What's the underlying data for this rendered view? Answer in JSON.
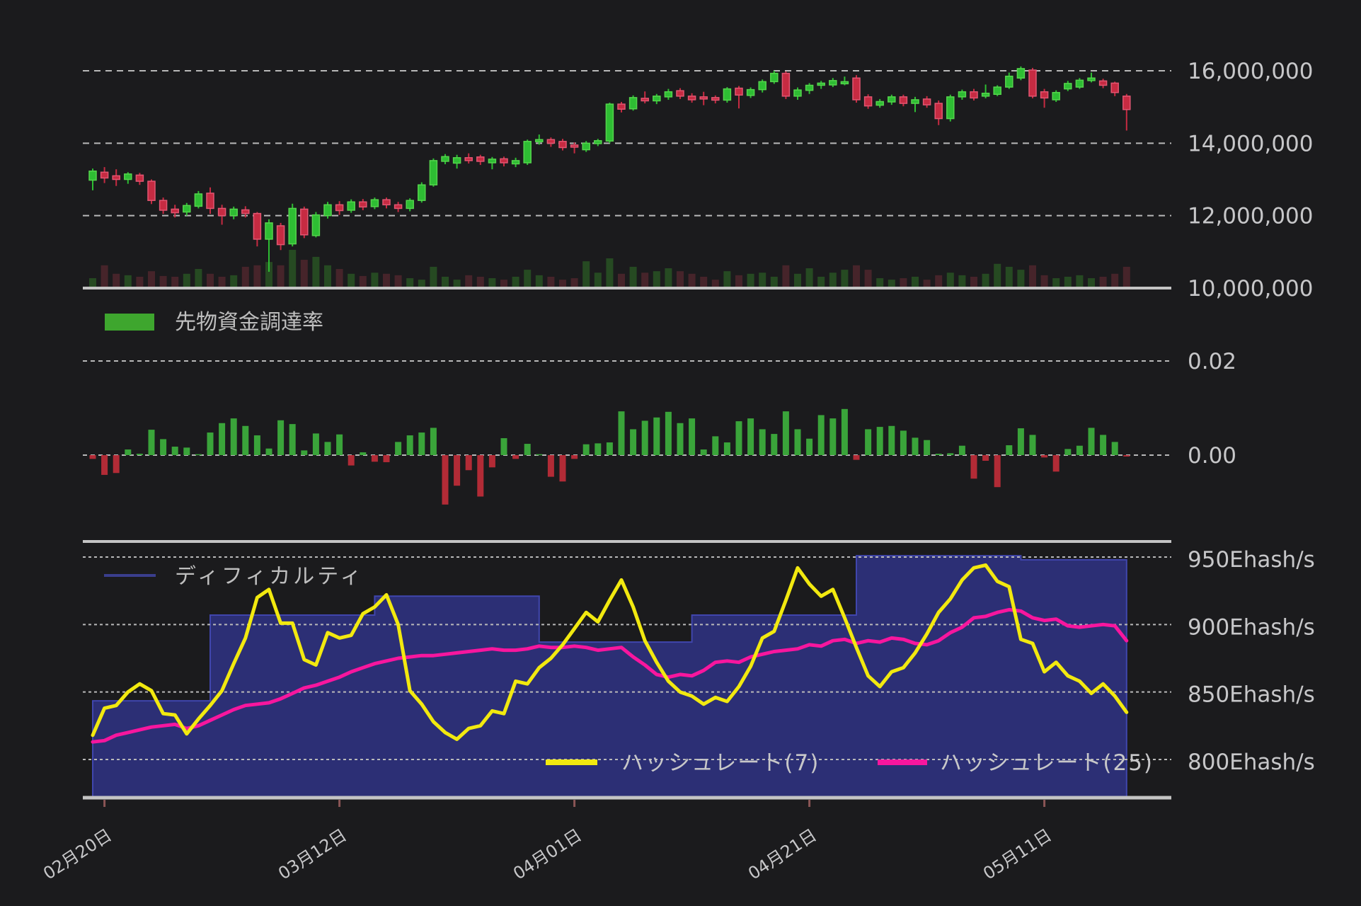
{
  "colors": {
    "background": "#1b1b1d",
    "gridline": "#b9b9b9",
    "panel_border": "#c4c4c4",
    "axis_text": "#c7c7c9",
    "candle_up_fill": "#2ebd33",
    "candle_up_stroke": "#55d44d",
    "candle_down_fill": "#c62b42",
    "candle_down_stroke": "#e25672",
    "volume_up": "#264a22",
    "volume_down": "#46242a",
    "funding_up": "#3aa43a",
    "funding_down": "#b22b36",
    "funding_legend_swatch": "#3ea62e",
    "difficulty_fill": "#2c2f75",
    "difficulty_edge": "#4046ad",
    "difficulty_legend": "#3a3e8d",
    "hashrate7_color": "#f2e90f",
    "hashrate25_color": "#f7169e",
    "tick_mark": "#8a5555"
  },
  "legends": {
    "funding": "先物資金調達率",
    "difficulty": "ディフィカルティ",
    "hashrate7": "ハッシュレート(7)",
    "hashrate25": "ハッシュレート(25)"
  },
  "x_axis": {
    "tick_labels": [
      "02月20日",
      "03月12日",
      "04月01日",
      "04月21日",
      "05月11日"
    ],
    "tick_days": [
      1,
      21,
      41,
      61,
      81
    ]
  },
  "price_axis": {
    "labels": [
      "16,000,000",
      "14,000,000",
      "12,000,000",
      "10,000,000"
    ],
    "values": [
      16000000,
      14000000,
      12000000,
      10000000
    ]
  },
  "funding_axis": {
    "labels": [
      "0.02",
      "0.00"
    ],
    "values": [
      0.02,
      0
    ]
  },
  "hashrate_axis": {
    "labels": [
      "950Ehash/s",
      "900Ehash/s",
      "850Ehash/s",
      "800Ehash/s"
    ],
    "values": [
      950,
      900,
      850,
      800
    ]
  },
  "chart_data": [
    {
      "type": "candlestick",
      "name": "price",
      "unit": "JPY",
      "ylim": [
        10000000,
        16900000
      ],
      "grid": true,
      "candles_ohlc": [
        [
          12980000,
          13300000,
          12700000,
          13230000
        ],
        [
          13200000,
          13340000,
          12900000,
          13040000
        ],
        [
          13100000,
          13280000,
          12820000,
          13000000
        ],
        [
          13000000,
          13200000,
          12880000,
          13150000
        ],
        [
          13120000,
          13180000,
          12850000,
          12950000
        ],
        [
          12950000,
          13000000,
          12320000,
          12420000
        ],
        [
          12420000,
          12500000,
          12050000,
          12150000
        ],
        [
          12180000,
          12300000,
          11950000,
          12080000
        ],
        [
          12100000,
          12350000,
          12000000,
          12280000
        ],
        [
          12260000,
          12680000,
          12200000,
          12600000
        ],
        [
          12620000,
          12780000,
          12050000,
          12200000
        ],
        [
          12200000,
          12300000,
          11750000,
          12000000
        ],
        [
          12000000,
          12250000,
          11900000,
          12180000
        ],
        [
          12160000,
          12260000,
          11950000,
          12060000
        ],
        [
          12060000,
          12100000,
          11150000,
          11350000
        ],
        [
          11350000,
          11900000,
          10450000,
          11800000
        ],
        [
          11720000,
          11800000,
          11050000,
          11200000
        ],
        [
          11220000,
          12330000,
          11150000,
          12200000
        ],
        [
          12180000,
          12250000,
          11380000,
          11470000
        ],
        [
          11450000,
          12100000,
          11400000,
          12020000
        ],
        [
          12000000,
          12380000,
          11920000,
          12300000
        ],
        [
          12300000,
          12400000,
          12020000,
          12140000
        ],
        [
          12150000,
          12450000,
          12080000,
          12380000
        ],
        [
          12380000,
          12460000,
          12150000,
          12240000
        ],
        [
          12250000,
          12500000,
          12180000,
          12440000
        ],
        [
          12440000,
          12500000,
          12200000,
          12300000
        ],
        [
          12300000,
          12380000,
          12100000,
          12200000
        ],
        [
          12200000,
          12480000,
          12120000,
          12420000
        ],
        [
          12420000,
          12920000,
          12360000,
          12850000
        ],
        [
          12850000,
          13580000,
          12800000,
          13520000
        ],
        [
          13500000,
          13700000,
          13420000,
          13630000
        ],
        [
          13450000,
          13680000,
          13300000,
          13600000
        ],
        [
          13600000,
          13720000,
          13440000,
          13520000
        ],
        [
          13620000,
          13680000,
          13400000,
          13500000
        ],
        [
          13460000,
          13620000,
          13280000,
          13560000
        ],
        [
          13570000,
          13630000,
          13360000,
          13460000
        ],
        [
          13430000,
          13600000,
          13340000,
          13520000
        ],
        [
          13460000,
          14100000,
          13400000,
          14050000
        ],
        [
          14050000,
          14240000,
          13960000,
          14100000
        ],
        [
          14100000,
          14160000,
          13900000,
          14000000
        ],
        [
          14050000,
          14120000,
          13800000,
          13880000
        ],
        [
          13950000,
          14020000,
          13720000,
          13900000
        ],
        [
          13820000,
          14060000,
          13760000,
          14000000
        ],
        [
          13990000,
          14120000,
          13920000,
          14070000
        ],
        [
          14060000,
          15120000,
          14000000,
          15080000
        ],
        [
          15080000,
          15140000,
          14850000,
          14940000
        ],
        [
          14950000,
          15320000,
          14900000,
          15260000
        ],
        [
          15240000,
          15430000,
          15100000,
          15170000
        ],
        [
          15170000,
          15360000,
          15080000,
          15300000
        ],
        [
          15280000,
          15500000,
          15200000,
          15420000
        ],
        [
          15450000,
          15520000,
          15220000,
          15300000
        ],
        [
          15300000,
          15380000,
          15120000,
          15200000
        ],
        [
          15280000,
          15420000,
          15050000,
          15240000
        ],
        [
          15260000,
          15320000,
          15100000,
          15190000
        ],
        [
          15190000,
          15550000,
          15120000,
          15500000
        ],
        [
          15520000,
          15580000,
          14960000,
          15330000
        ],
        [
          15320000,
          15540000,
          15250000,
          15480000
        ],
        [
          15480000,
          15760000,
          15400000,
          15700000
        ],
        [
          15700000,
          16000000,
          15640000,
          15930000
        ],
        [
          15930000,
          15980000,
          15220000,
          15300000
        ],
        [
          15300000,
          15540000,
          15200000,
          15470000
        ],
        [
          15460000,
          15660000,
          15360000,
          15600000
        ],
        [
          15600000,
          15720000,
          15500000,
          15660000
        ],
        [
          15610000,
          15800000,
          15550000,
          15730000
        ],
        [
          15670000,
          15840000,
          15600000,
          15700000
        ],
        [
          15800000,
          15880000,
          15120000,
          15200000
        ],
        [
          15280000,
          15350000,
          14950000,
          15030000
        ],
        [
          15050000,
          15220000,
          14980000,
          15150000
        ],
        [
          15140000,
          15340000,
          15060000,
          15280000
        ],
        [
          15280000,
          15340000,
          15020000,
          15100000
        ],
        [
          15100000,
          15280000,
          14860000,
          15200000
        ],
        [
          15220000,
          15300000,
          14980000,
          15060000
        ],
        [
          15100000,
          15180000,
          14500000,
          14680000
        ],
        [
          14680000,
          15340000,
          14600000,
          15280000
        ],
        [
          15280000,
          15480000,
          15200000,
          15420000
        ],
        [
          15420000,
          15500000,
          15180000,
          15250000
        ],
        [
          15300000,
          15620000,
          15240000,
          15380000
        ],
        [
          15350000,
          15600000,
          15300000,
          15550000
        ],
        [
          15550000,
          15950000,
          15500000,
          15850000
        ],
        [
          15800000,
          16120000,
          15740000,
          16060000
        ],
        [
          16020000,
          16080000,
          15240000,
          15300000
        ],
        [
          15420000,
          15500000,
          14980000,
          15250000
        ],
        [
          15200000,
          15460000,
          15140000,
          15400000
        ],
        [
          15500000,
          15720000,
          15440000,
          15650000
        ],
        [
          15550000,
          15800000,
          15500000,
          15740000
        ],
        [
          15730000,
          15950000,
          15680000,
          15800000
        ],
        [
          15720000,
          15780000,
          15520000,
          15600000
        ],
        [
          15660000,
          15700000,
          15300000,
          15400000
        ],
        [
          15300000,
          15360000,
          14350000,
          14930000
        ]
      ],
      "volume_rel": [
        0.23,
        0.58,
        0.35,
        0.31,
        0.27,
        0.42,
        0.29,
        0.27,
        0.35,
        0.48,
        0.35,
        0.27,
        0.31,
        0.54,
        0.58,
        0.67,
        0.58,
        1.0,
        0.73,
        0.81,
        0.58,
        0.48,
        0.35,
        0.29,
        0.38,
        0.35,
        0.31,
        0.23,
        0.19,
        0.54,
        0.27,
        0.19,
        0.31,
        0.27,
        0.23,
        0.19,
        0.27,
        0.46,
        0.31,
        0.27,
        0.19,
        0.23,
        0.69,
        0.38,
        0.77,
        0.35,
        0.54,
        0.38,
        0.42,
        0.5,
        0.42,
        0.35,
        0.27,
        0.19,
        0.42,
        0.31,
        0.35,
        0.38,
        0.27,
        0.58,
        0.35,
        0.5,
        0.27,
        0.38,
        0.46,
        0.58,
        0.46,
        0.23,
        0.19,
        0.23,
        0.27,
        0.19,
        0.31,
        0.38,
        0.31,
        0.27,
        0.35,
        0.62,
        0.54,
        0.46,
        0.58,
        0.31,
        0.23,
        0.27,
        0.31,
        0.23,
        0.27,
        0.35,
        0.54
      ]
    },
    {
      "type": "bar",
      "name": "funding_rate",
      "title": "先物資金調達率",
      "ylim": [
        -0.013,
        0.022
      ],
      "values": [
        -0.0008,
        -0.0042,
        -0.0038,
        0.0012,
        0.0003,
        0.0054,
        0.0034,
        0.0018,
        0.0016,
        0.0002,
        0.0048,
        0.0068,
        0.0078,
        0.0062,
        0.0042,
        0.0014,
        0.0074,
        0.0066,
        0.001,
        0.0046,
        0.0028,
        0.0044,
        -0.0022,
        0.0006,
        -0.0014,
        -0.0015,
        0.0028,
        0.0042,
        0.0048,
        0.0058,
        -0.0105,
        -0.0065,
        -0.0032,
        -0.0088,
        -0.0026,
        0.0036,
        -0.0008,
        0.0024,
        0.0002,
        -0.0046,
        -0.0056,
        -0.0008,
        0.0023,
        0.0025,
        0.0027,
        0.0093,
        0.0055,
        0.0073,
        0.008,
        0.0092,
        0.0068,
        0.0078,
        0.0012,
        0.004,
        0.0027,
        0.0072,
        0.0078,
        0.0055,
        0.0045,
        0.0093,
        0.0055,
        0.0035,
        0.0085,
        0.0078,
        0.0098,
        -0.001,
        0.0055,
        0.006,
        0.0062,
        0.0052,
        0.0037,
        0.0032,
        0.0003,
        0.0004,
        0.002,
        -0.005,
        -0.0012,
        -0.0068,
        0.0021,
        0.0057,
        0.0043,
        -0.0005,
        -0.0035,
        0.0013,
        0.002,
        0.0058,
        0.0043,
        0.0028,
        -0.0003
      ]
    },
    {
      "type": "area",
      "name": "difficulty",
      "title": "ディフィカルティ",
      "unit": "Ehash/s",
      "ylim": [
        771,
        960
      ],
      "steps_day_from_to_value": [
        [
          0,
          10,
          843.5
        ],
        [
          10,
          24,
          907
        ],
        [
          24,
          38,
          921
        ],
        [
          38,
          51,
          887
        ],
        [
          51,
          65,
          907
        ],
        [
          65,
          79,
          951
        ],
        [
          79,
          88,
          948
        ]
      ]
    },
    {
      "type": "line",
      "name": "hashrate_7",
      "title": "ハッシュレート(7)",
      "unit": "Ehash/s",
      "values": [
        818,
        838,
        840,
        850,
        856,
        851,
        834,
        833,
        819,
        830,
        840,
        851,
        871,
        890,
        920,
        926,
        901,
        901,
        874,
        870,
        894,
        890,
        892,
        908,
        913,
        922,
        900,
        851,
        841,
        828,
        820,
        815,
        823,
        825,
        836,
        834,
        858,
        856,
        868,
        875,
        885,
        897,
        909,
        902,
        918,
        933,
        913,
        888,
        872,
        858,
        850,
        847,
        841,
        846,
        843,
        854,
        869,
        890,
        895,
        918,
        942,
        930,
        921,
        926,
        905,
        883,
        862,
        854,
        865,
        868,
        879,
        893,
        909,
        919,
        933,
        942,
        944,
        932,
        928,
        889,
        886,
        865,
        872,
        862,
        858,
        849,
        856,
        847,
        835
      ]
    },
    {
      "type": "line",
      "name": "hashrate_25",
      "title": "ハッシュレート(25)",
      "unit": "Ehash/s",
      "values": [
        813,
        814,
        818,
        820,
        822,
        824,
        825,
        826,
        823,
        825,
        829,
        833,
        837,
        840,
        841,
        842,
        845,
        849,
        853,
        855,
        858,
        861,
        865,
        868,
        871,
        873,
        875,
        876,
        877,
        877,
        878,
        879,
        880,
        881,
        882,
        881,
        881,
        882,
        884,
        883,
        883,
        884,
        883,
        881,
        882,
        883,
        876,
        870,
        863,
        861,
        863,
        862,
        866,
        872,
        873,
        872,
        876,
        878,
        880,
        881,
        882,
        885,
        884,
        888,
        889,
        886,
        888,
        887,
        890,
        889,
        886,
        885,
        888,
        894,
        898,
        905,
        906,
        909,
        911,
        910,
        905,
        903,
        904,
        899,
        898,
        899,
        900,
        899,
        888
      ]
    }
  ]
}
